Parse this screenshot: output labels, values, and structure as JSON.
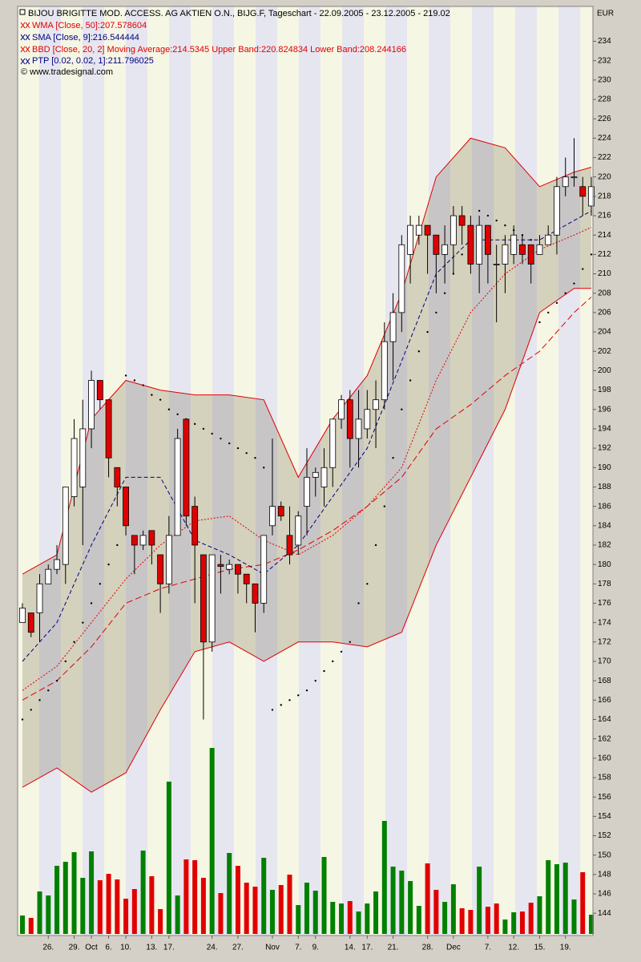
{
  "chart_data": {
    "type": "candlestick",
    "title": "BIJOU BRIGITTE MOD. ACCESS. AG AKTIEN O.N., BIJG.F, Tageschart - 22.09.2005 - 23.12.2005 - 219.02",
    "copyright": "© www.tradesignal.com",
    "currency": "EUR",
    "up_color": "#ffffff",
    "down_color": "#e00000",
    "categories": [
      null,
      null,
      null,
      "26.",
      null,
      null,
      "29.",
      null,
      "Oct",
      null,
      "6.",
      null,
      "10.",
      null,
      null,
      "13.",
      null,
      "17.",
      null,
      null,
      null,
      null,
      "24.",
      null,
      null,
      "27.",
      null,
      null,
      null,
      "Nov",
      null,
      null,
      "7.",
      null,
      "9.",
      null,
      null,
      null,
      "14.",
      null,
      "17.",
      null,
      null,
      "21.",
      null,
      null,
      null,
      "28.",
      null,
      null,
      "Dec",
      null,
      null,
      null,
      "7.",
      null,
      null,
      "12.",
      null,
      null,
      "15.",
      null,
      null,
      "19.",
      null,
      null,
      null
    ],
    "open": [
      174,
      175,
      175,
      178,
      179.5,
      180,
      187,
      188,
      194,
      199,
      197,
      190,
      188,
      183,
      182,
      183.5,
      181,
      178,
      183,
      195,
      186,
      181,
      172,
      180,
      179.5,
      180,
      179,
      178,
      176,
      184,
      186,
      183,
      182,
      186,
      189,
      188,
      190,
      195,
      197,
      193,
      194,
      196,
      197,
      203,
      206,
      212,
      214,
      215,
      214,
      212,
      213,
      216,
      215,
      211,
      215,
      211,
      211,
      212,
      213,
      213,
      212,
      213,
      214,
      219,
      220,
      219,
      217
    ],
    "high": [
      176,
      175,
      179,
      180,
      182,
      188,
      195,
      197,
      200,
      199,
      197,
      190,
      188,
      183,
      183.5,
      183.5,
      181,
      185,
      194,
      195,
      187,
      181,
      181,
      181,
      180.5,
      180,
      179,
      178,
      183,
      193,
      186.5,
      186,
      185.5,
      192,
      190,
      192,
      195,
      197.5,
      198,
      198,
      198,
      199,
      205,
      208,
      214,
      216,
      216,
      215,
      214,
      215,
      217,
      217,
      216,
      216,
      215,
      213,
      214,
      215,
      214,
      213,
      214,
      215,
      220,
      222,
      224,
      220,
      220
    ],
    "low": [
      174,
      172.5,
      172,
      178,
      179,
      178,
      186,
      182,
      192,
      196,
      189,
      186,
      183,
      179,
      181.5,
      180,
      175,
      177,
      183,
      184,
      176,
      164,
      171,
      177,
      179,
      177,
      176,
      173,
      175,
      183,
      184.5,
      180,
      181,
      183,
      187,
      186,
      188,
      194,
      190,
      190,
      193,
      192,
      196,
      199,
      204,
      209,
      213,
      210,
      208,
      209,
      210,
      213,
      210,
      208,
      209,
      205,
      208,
      211,
      211,
      209,
      212,
      213,
      212,
      218,
      219,
      216,
      216
    ],
    "close": [
      175.5,
      173,
      178,
      179.5,
      180.5,
      188,
      193,
      194,
      199,
      197,
      191,
      188,
      184,
      182,
      183,
      182,
      178,
      183,
      193,
      185,
      182,
      172,
      181,
      179.8,
      180,
      179,
      178,
      176,
      183,
      186,
      185,
      181,
      185,
      189,
      189.5,
      190,
      195,
      197,
      193,
      195,
      196,
      197,
      203,
      206,
      213,
      215,
      215,
      214,
      212,
      213,
      216,
      215,
      211,
      215,
      212,
      211,
      213,
      214,
      212,
      211,
      213,
      214,
      219,
      220,
      220,
      218,
      219
    ],
    "volume": {
      "up_color": "#008000",
      "down_color": "#e00000",
      "values": [
        23,
        20,
        53,
        48,
        85,
        90,
        102,
        70,
        103,
        67,
        75,
        68,
        44,
        56,
        104,
        72,
        31,
        190,
        48,
        93,
        92,
        70,
        232,
        51,
        101,
        85,
        64,
        59,
        95,
        55,
        61,
        74,
        36,
        64,
        54,
        96,
        40,
        38,
        41,
        28,
        38,
        53,
        141,
        84,
        79,
        66,
        35,
        88,
        55,
        40,
        62,
        32,
        30,
        84,
        34,
        38,
        18,
        27,
        28,
        39,
        47,
        92,
        87,
        89,
        43,
        77,
        24
      ]
    },
    "overlays": [
      {
        "name": "WMA [Close, 50]:207.578604",
        "color": "#e00000",
        "style": "longdash",
        "x": [
          0,
          4,
          8,
          12,
          16,
          20,
          24,
          28,
          32,
          36,
          40,
          44,
          48,
          52,
          56,
          60,
          64,
          66
        ],
        "values": [
          166,
          168,
          171.5,
          176,
          177.5,
          178.5,
          179.5,
          180,
          181.5,
          183.5,
          186,
          189,
          194,
          196.5,
          199.5,
          202,
          206,
          207.6
        ]
      },
      {
        "name": "SMA [Close, 9]:216.544444",
        "color": "#000080",
        "style": "dash",
        "x": [
          0,
          4,
          8,
          12,
          16,
          20,
          24,
          28,
          32,
          36,
          40,
          44,
          48,
          52,
          56,
          60,
          64,
          66
        ],
        "values": [
          170,
          174,
          182,
          189,
          189,
          182.5,
          181,
          179,
          182,
          187,
          192,
          201,
          210,
          213.5,
          213.5,
          213.5,
          215.5,
          216.5
        ]
      }
    ],
    "bands": {
      "name": "BBD [Close, 20, 2] Moving Average:214.5345 Upper Band:220.824834 Lower Band:208.244166",
      "color": "#e00000",
      "x": [
        0,
        4,
        8,
        12,
        16,
        20,
        24,
        28,
        32,
        36,
        40,
        44,
        48,
        52,
        56,
        60,
        64,
        66
      ],
      "middle": [
        167,
        169.5,
        174,
        178.5,
        182,
        184.5,
        185,
        182.5,
        181,
        183,
        186,
        190,
        199,
        206,
        210,
        212.5,
        214,
        214.8
      ],
      "upper": [
        179,
        181,
        195,
        199,
        198,
        197.5,
        197.5,
        197,
        189,
        195,
        199.5,
        208,
        220,
        224,
        223,
        219,
        220.5,
        221
      ],
      "lower": [
        157,
        159,
        156.5,
        158.5,
        165,
        171,
        172,
        170,
        172,
        172,
        171.5,
        173,
        182,
        189,
        196,
        206,
        208.5,
        208.5
      ]
    },
    "ptp": {
      "name": "PTP [0.02, 0.02, 1]:211.796025",
      "color": "#000080",
      "values": [
        164,
        165,
        166,
        167,
        168,
        170,
        172,
        174,
        176,
        178,
        180,
        182,
        199.5,
        199,
        198.5,
        197.5,
        197,
        196,
        195.5,
        195,
        194.5,
        194,
        193.5,
        193,
        192.5,
        192,
        191.5,
        191,
        190,
        165,
        165.5,
        166,
        166.5,
        167,
        168,
        169,
        170,
        171,
        172,
        176,
        178,
        182,
        186,
        191,
        196,
        199,
        202,
        204,
        206,
        208,
        210,
        212,
        213,
        216.5,
        216,
        215.5,
        215,
        214.5,
        214,
        213.5,
        205,
        206,
        207,
        208,
        209,
        210.5,
        212
      ]
    },
    "ylim": [
      141.7,
      237.6
    ],
    "yticks": [
      144,
      146,
      148,
      150,
      152,
      154,
      156,
      158,
      160,
      162,
      164,
      166,
      168,
      170,
      172,
      174,
      176,
      178,
      180,
      182,
      184,
      186,
      188,
      190,
      192,
      194,
      196,
      198,
      200,
      202,
      204,
      206,
      208,
      210,
      212,
      214,
      216,
      218,
      220,
      222,
      224,
      226,
      228,
      230,
      232,
      234
    ]
  }
}
